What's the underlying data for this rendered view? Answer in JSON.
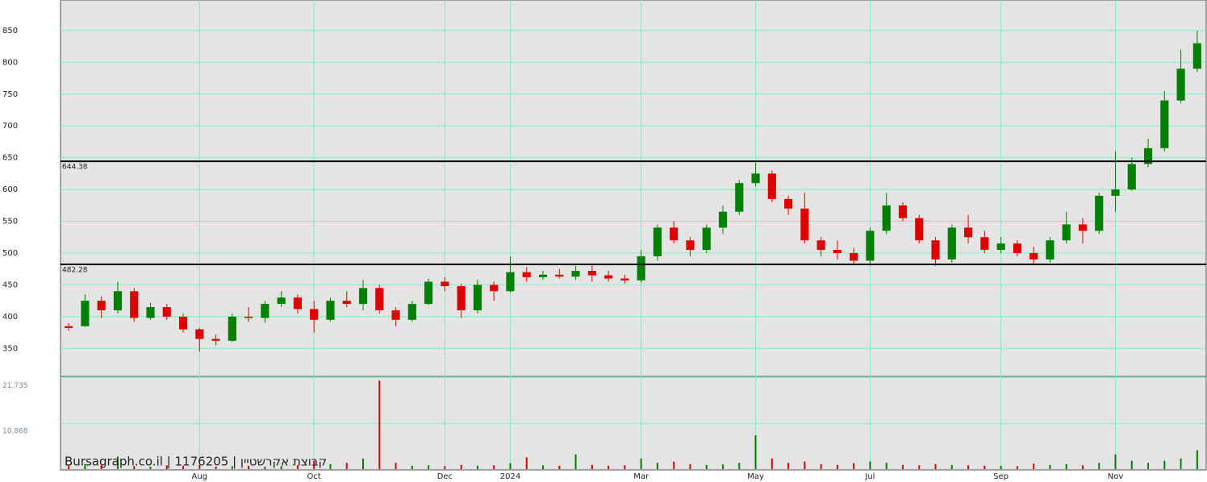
{
  "chart_data": {
    "type": "candlestick",
    "credit": "Bursagraph.co.il | 1176205 | קבוצת אקרשטיין",
    "categories": [
      null,
      null,
      null,
      null,
      null,
      null,
      null,
      null,
      "Aug",
      null,
      null,
      null,
      null,
      null,
      null,
      "Oct",
      null,
      null,
      null,
      null,
      null,
      null,
      null,
      "Dec",
      null,
      null,
      null,
      "2024",
      null,
      null,
      null,
      null,
      null,
      null,
      null,
      "Mar",
      null,
      null,
      null,
      null,
      null,
      null,
      "May",
      null,
      null,
      null,
      null,
      null,
      null,
      "Jul",
      null,
      null,
      null,
      null,
      null,
      null,
      null,
      "Sep",
      null,
      null,
      null,
      null,
      null,
      null,
      "Nov",
      null,
      null,
      null,
      null,
      null
    ],
    "open": [
      385,
      385,
      425,
      410,
      440,
      398,
      415,
      400,
      380,
      365,
      362,
      400,
      398,
      420,
      430,
      412,
      395,
      425,
      420,
      445,
      410,
      395,
      420,
      455,
      448,
      410,
      450,
      440,
      470,
      462,
      466,
      463,
      472,
      465,
      460,
      457,
      495,
      540,
      520,
      505,
      540,
      565,
      610,
      625,
      585,
      570,
      520,
      505,
      500,
      488,
      535,
      575,
      555,
      520,
      490,
      540,
      525,
      505,
      515,
      500,
      490,
      520,
      545,
      535,
      590,
      600,
      640,
      665,
      740,
      790
    ],
    "high": [
      390,
      435,
      432,
      455,
      445,
      422,
      420,
      405,
      382,
      372,
      405,
      415,
      425,
      440,
      435,
      425,
      430,
      440,
      458,
      450,
      415,
      425,
      460,
      462,
      452,
      458,
      455,
      495,
      478,
      472,
      475,
      480,
      482,
      472,
      466,
      505,
      545,
      550,
      525,
      545,
      575,
      615,
      642,
      630,
      590,
      595,
      525,
      520,
      508,
      540,
      595,
      580,
      560,
      525,
      545,
      560,
      535,
      525,
      520,
      510,
      525,
      565,
      555,
      595,
      660,
      650,
      680,
      755,
      820,
      850
    ],
    "low": [
      378,
      384,
      398,
      405,
      392,
      395,
      395,
      375,
      345,
      355,
      360,
      392,
      390,
      415,
      405,
      375,
      392,
      415,
      410,
      405,
      385,
      392,
      418,
      440,
      398,
      405,
      425,
      438,
      455,
      458,
      460,
      458,
      455,
      455,
      452,
      453,
      488,
      515,
      495,
      500,
      530,
      560,
      605,
      580,
      560,
      515,
      495,
      490,
      482,
      480,
      530,
      550,
      515,
      480,
      485,
      515,
      500,
      500,
      495,
      482,
      485,
      515,
      515,
      530,
      565,
      598,
      635,
      660,
      735,
      785
    ],
    "close": [
      382,
      425,
      410,
      440,
      398,
      415,
      400,
      380,
      365,
      362,
      400,
      398,
      420,
      430,
      412,
      395,
      425,
      420,
      445,
      410,
      395,
      420,
      455,
      448,
      410,
      450,
      440,
      470,
      462,
      466,
      463,
      472,
      465,
      460,
      457,
      495,
      540,
      520,
      505,
      540,
      565,
      610,
      625,
      585,
      570,
      520,
      505,
      500,
      488,
      535,
      575,
      555,
      520,
      490,
      540,
      525,
      505,
      515,
      500,
      490,
      520,
      545,
      535,
      590,
      600,
      640,
      665,
      740,
      790,
      830
    ],
    "volume": [
      800,
      1200,
      900,
      3000,
      700,
      600,
      900,
      800,
      1000,
      600,
      700,
      800,
      600,
      700,
      900,
      2000,
      1200,
      1500,
      2500,
      21000,
      1500,
      800,
      900,
      700,
      1000,
      800,
      900,
      1400,
      2800,
      900,
      800,
      3500,
      1000,
      800,
      900,
      2500,
      1500,
      1800,
      1200,
      1000,
      1100,
      1500,
      8000,
      2500,
      1500,
      1800,
      1200,
      1000,
      1400,
      1800,
      1500,
      1000,
      900,
      1200,
      1000,
      900,
      800,
      800,
      700,
      1300,
      1000,
      1200,
      900,
      1500,
      3500,
      2000,
      1500,
      2000,
      2500,
      4500
    ],
    "up_color": "#008000",
    "down_color": "#e00000",
    "ylim": [
      306,
      898
    ],
    "yticks": [
      350,
      400,
      450,
      500,
      550,
      600,
      650,
      700,
      750,
      800,
      850
    ],
    "volume_ylim": [
      0,
      22000
    ],
    "volume_ticks": [
      {
        "value": 21735,
        "label": "21,735"
      },
      {
        "value": 10868,
        "label": "10,868"
      }
    ],
    "levels": [
      644.38,
      482.28
    ],
    "grid": true
  }
}
